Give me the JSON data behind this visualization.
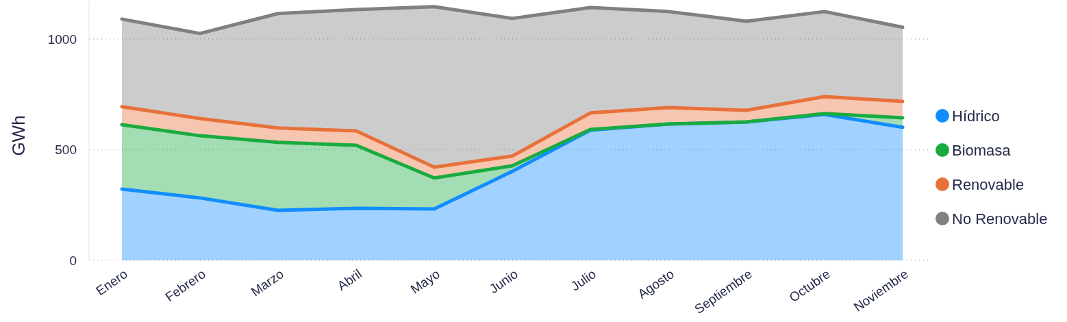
{
  "chart_data": {
    "type": "area",
    "stacked": true,
    "ylabel": "GWh",
    "categories": [
      "Enero",
      "Febrero",
      "Marzo",
      "Abril",
      "Mayo",
      "Junio",
      "Julio",
      "Agosto",
      "Septiembre",
      "Octubre",
      "Noviembre"
    ],
    "series": [
      {
        "name": "Hídrico",
        "color": "#118dff",
        "values": [
          322,
          282,
          226,
          235,
          232,
          402,
          588,
          616,
          625,
          659,
          601
        ]
      },
      {
        "name": "Biomasa",
        "color": "#1aab40",
        "values": [
          291,
          281,
          307,
          285,
          140,
          25,
          3,
          0,
          0,
          4,
          43
        ]
      },
      {
        "name": "Renovable",
        "color": "#e8713a",
        "values": [
          81,
          78,
          65,
          65,
          49,
          44,
          75,
          74,
          53,
          77,
          74
        ]
      },
      {
        "name": "No Renovable",
        "color": "#808080",
        "values": [
          396,
          384,
          517,
          548,
          725,
          622,
          476,
          434,
          402,
          384,
          335
        ]
      }
    ],
    "ylim": [
      0,
      1170
    ],
    "yticks": [
      0,
      500,
      1000
    ],
    "grid": "y",
    "legend": "right"
  }
}
